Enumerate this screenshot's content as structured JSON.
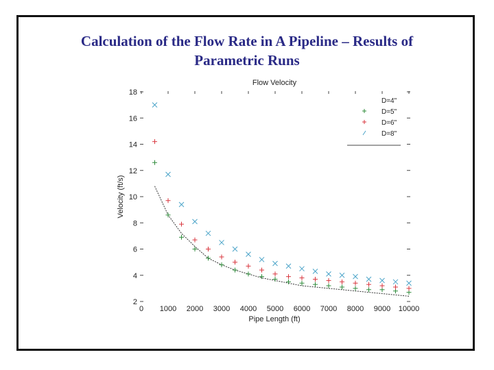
{
  "slide": {
    "title_line1": "Calculation of the Flow Rate in A Pipeline – Results of",
    "title_line2": "Parametric Runs"
  },
  "chart_data": {
    "type": "scatter",
    "title": "Flow Velocity",
    "xlabel": "Pipe Length (ft)",
    "ylabel": "Velocity (ft/s)",
    "xlim": [
      0,
      10000
    ],
    "ylim": [
      2,
      18
    ],
    "xticks": [
      0,
      1000,
      2000,
      3000,
      4000,
      5000,
      6000,
      7000,
      8000,
      9000,
      10000
    ],
    "yticks": [
      2,
      4,
      6,
      8,
      10,
      12,
      14,
      16,
      18
    ],
    "grid": false,
    "legend_position": "top-right",
    "series": [
      {
        "name": "D=4\"",
        "marker": "line",
        "color": "#333333",
        "x": [
          500,
          1000,
          1500,
          2000,
          2500,
          3000,
          3500,
          4000,
          4500,
          5000,
          5500,
          6000,
          6500,
          7000,
          7500,
          8000,
          8500,
          9000,
          9500,
          10000
        ],
        "y": [
          10.8,
          8.6,
          7.2,
          6.2,
          5.3,
          4.8,
          4.4,
          4.1,
          3.8,
          3.6,
          3.4,
          3.2,
          3.1,
          3.0,
          2.9,
          2.8,
          2.7,
          2.6,
          2.5,
          2.4
        ]
      },
      {
        "name": "D=5\"",
        "marker": "plus",
        "color": "#2e8b3a",
        "x": [
          500,
          1000,
          1500,
          2000,
          2500,
          3000,
          3500,
          4000,
          4500,
          5000,
          5500,
          6000,
          6500,
          7000,
          7500,
          8000,
          8500,
          9000,
          9500,
          10000
        ],
        "y": [
          12.6,
          8.6,
          6.9,
          6.0,
          5.3,
          4.8,
          4.4,
          4.1,
          3.9,
          3.7,
          3.5,
          3.4,
          3.3,
          3.2,
          3.1,
          3.0,
          2.9,
          2.9,
          2.8,
          2.7
        ]
      },
      {
        "name": "D=6\"",
        "marker": "plus",
        "color": "#d9363e",
        "x": [
          500,
          1000,
          1500,
          2000,
          2500,
          3000,
          3500,
          4000,
          4500,
          5000,
          5500,
          6000,
          6500,
          7000,
          7500,
          8000,
          8500,
          9000,
          9500,
          10000
        ],
        "y": [
          14.2,
          9.7,
          7.9,
          6.7,
          6.0,
          5.4,
          5.0,
          4.7,
          4.4,
          4.1,
          3.9,
          3.8,
          3.7,
          3.6,
          3.5,
          3.4,
          3.3,
          3.2,
          3.1,
          3.0
        ]
      },
      {
        "name": "D=8\"",
        "marker": "x",
        "color": "#4aa3c8",
        "x": [
          500,
          1000,
          1500,
          2000,
          2500,
          3000,
          3500,
          4000,
          4500,
          5000,
          5500,
          6000,
          6500,
          7000,
          7500,
          8000,
          8500,
          9000,
          9500,
          10000
        ],
        "y": [
          17.0,
          11.7,
          9.4,
          8.1,
          7.2,
          6.5,
          6.0,
          5.6,
          5.2,
          4.9,
          4.7,
          4.5,
          4.3,
          4.1,
          4.0,
          3.9,
          3.7,
          3.6,
          3.5,
          3.4
        ]
      }
    ]
  }
}
